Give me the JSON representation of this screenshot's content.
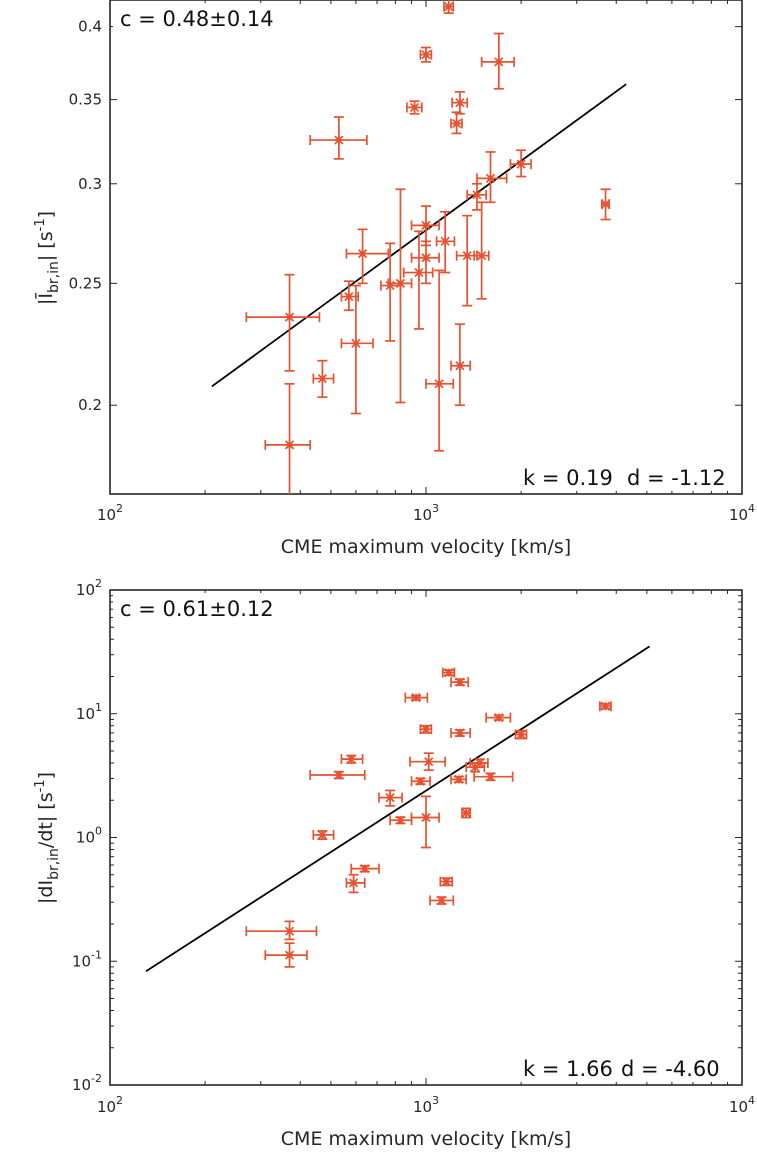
{
  "colors": {
    "data": "#e8512f",
    "fit": "#000000",
    "axis": "#262626"
  },
  "chart_data": [
    {
      "type": "scatter",
      "xscale": "log",
      "yscale": "log",
      "xlim": [
        100,
        10000
      ],
      "ylim": [
        0.17,
        0.42
      ],
      "xlabel": "CME maximum velocity [km/s]",
      "ylabel_main": "|Ī",
      "ylabel_sub": "br,in",
      "ylabel_unit": "| [s",
      "ylabel_sup": "-1",
      "ylabel_end": "]",
      "x_ticks": [
        {
          "base": "10",
          "exp": "2"
        },
        {
          "base": "10",
          "exp": "3"
        },
        {
          "base": "10",
          "exp": "4"
        }
      ],
      "y_ticks": [
        "0.2",
        "0.25",
        "0.3",
        "0.35",
        "0.4"
      ],
      "annotation_c": "c = 0.48±0.14",
      "annotation_k": "k = 0.19",
      "annotation_d": "d = -1.12",
      "fit": {
        "x": [
          210,
          4300
        ],
        "y": [
          0.207,
          0.36
        ]
      },
      "points": [
        {
          "x": 1180,
          "y": 0.415,
          "xerr": [
            1140,
            1220
          ],
          "yerr": [
            0.41,
            0.422
          ]
        },
        {
          "x": 1000,
          "y": 0.38,
          "xerr": [
            960,
            1040
          ],
          "yerr": [
            0.375,
            0.385
          ]
        },
        {
          "x": 1700,
          "y": 0.375,
          "xerr": [
            1500,
            1900
          ],
          "yerr": [
            0.357,
            0.395
          ]
        },
        {
          "x": 1280,
          "y": 0.348,
          "xerr": [
            1210,
            1350
          ],
          "yerr": [
            0.341,
            0.355
          ]
        },
        {
          "x": 920,
          "y": 0.345,
          "xerr": [
            870,
            970
          ],
          "yerr": [
            0.341,
            0.349
          ]
        },
        {
          "x": 1250,
          "y": 0.335,
          "xerr": [
            1200,
            1300
          ],
          "yerr": [
            0.329,
            0.342
          ]
        },
        {
          "x": 530,
          "y": 0.325,
          "xerr": [
            430,
            650
          ],
          "yerr": [
            0.314,
            0.339
          ]
        },
        {
          "x": 2000,
          "y": 0.311,
          "xerr": [
            1850,
            2150
          ],
          "yerr": [
            0.304,
            0.319
          ]
        },
        {
          "x": 1600,
          "y": 0.303,
          "xerr": [
            1450,
            1800
          ],
          "yerr": [
            0.29,
            0.318
          ]
        },
        {
          "x": 1450,
          "y": 0.294,
          "xerr": [
            1350,
            1550
          ],
          "yerr": [
            0.286,
            0.3
          ]
        },
        {
          "x": 3700,
          "y": 0.289,
          "xerr": [
            3600,
            3800
          ],
          "yerr": [
            0.281,
            0.297
          ]
        },
        {
          "x": 1000,
          "y": 0.278,
          "xerr": [
            900,
            1100
          ],
          "yerr": [
            0.268,
            0.288
          ]
        },
        {
          "x": 1150,
          "y": 0.27,
          "xerr": [
            1080,
            1230
          ],
          "yerr": [
            0.255,
            0.285
          ]
        },
        {
          "x": 630,
          "y": 0.264,
          "xerr": [
            560,
            760
          ],
          "yerr": [
            0.25,
            0.276
          ]
        },
        {
          "x": 1350,
          "y": 0.263,
          "xerr": [
            1250,
            1450
          ],
          "yerr": [
            0.24,
            0.283
          ]
        },
        {
          "x": 1500,
          "y": 0.263,
          "xerr": [
            1420,
            1580
          ],
          "yerr": [
            0.243,
            0.29
          ]
        },
        {
          "x": 1000,
          "y": 0.262,
          "xerr": [
            900,
            1100
          ],
          "yerr": [
            0.25,
            0.27
          ]
        },
        {
          "x": 950,
          "y": 0.255,
          "xerr": [
            850,
            1050
          ],
          "yerr": [
            0.23,
            0.275
          ]
        },
        {
          "x": 830,
          "y": 0.25,
          "xerr": [
            760,
            900
          ],
          "yerr": [
            0.201,
            0.297
          ]
        },
        {
          "x": 770,
          "y": 0.249,
          "xerr": [
            720,
            830
          ],
          "yerr": [
            0.225,
            0.269
          ]
        },
        {
          "x": 570,
          "y": 0.244,
          "xerr": [
            540,
            610
          ],
          "yerr": [
            0.238,
            0.251
          ]
        },
        {
          "x": 370,
          "y": 0.235,
          "xerr": [
            270,
            460
          ],
          "yerr": [
            0.213,
            0.254
          ]
        },
        {
          "x": 600,
          "y": 0.224,
          "xerr": [
            540,
            680
          ],
          "yerr": [
            0.197,
            0.249
          ]
        },
        {
          "x": 1280,
          "y": 0.215,
          "xerr": [
            1200,
            1380
          ],
          "yerr": [
            0.2,
            0.232
          ]
        },
        {
          "x": 470,
          "y": 0.21,
          "xerr": [
            440,
            510
          ],
          "yerr": [
            0.203,
            0.217
          ]
        },
        {
          "x": 1100,
          "y": 0.208,
          "xerr": [
            1000,
            1220
          ],
          "yerr": [
            0.184,
            0.256
          ]
        },
        {
          "x": 370,
          "y": 0.186,
          "xerr": [
            310,
            430
          ],
          "yerr": [
            0.157,
            0.208
          ]
        }
      ]
    },
    {
      "type": "scatter",
      "xscale": "log",
      "yscale": "log",
      "xlim": [
        100,
        10000
      ],
      "ylim": [
        0.01,
        100
      ],
      "xlabel": "CME maximum velocity [km/s]",
      "ylabel_main": "|dI",
      "ylabel_sub": "br,in",
      "ylabel_unit": "/dt| [s",
      "ylabel_sup": "-1",
      "ylabel_end": "]",
      "x_ticks": [
        {
          "base": "10",
          "exp": "2"
        },
        {
          "base": "10",
          "exp": "3"
        },
        {
          "base": "10",
          "exp": "4"
        }
      ],
      "y_ticks": [
        {
          "base": "10",
          "exp": "-2"
        },
        {
          "base": "10",
          "exp": "-1"
        },
        {
          "base": "10",
          "exp": "0"
        },
        {
          "base": "10",
          "exp": "1"
        },
        {
          "base": "10",
          "exp": "2"
        }
      ],
      "annotation_c": "c = 0.61±0.12",
      "annotation_k": "k = 1.66",
      "annotation_d": "d = -4.60",
      "fit": {
        "x": [
          130,
          5100
        ],
        "y": [
          0.083,
          35
        ]
      },
      "points": [
        {
          "x": 1180,
          "y": 21.5,
          "xerr": [
            1130,
            1230
          ],
          "yerr": [
            20.5,
            22.5
          ]
        },
        {
          "x": 1280,
          "y": 18.0,
          "xerr": [
            1200,
            1360
          ],
          "yerr": [
            17.0,
            19.0
          ]
        },
        {
          "x": 930,
          "y": 13.5,
          "xerr": [
            860,
            1010
          ],
          "yerr": [
            13.0,
            14.0
          ]
        },
        {
          "x": 3700,
          "y": 11.5,
          "xerr": [
            3550,
            3850
          ],
          "yerr": [
            11.0,
            12.0
          ]
        },
        {
          "x": 1700,
          "y": 9.3,
          "xerr": [
            1550,
            1850
          ],
          "yerr": [
            8.9,
            9.7
          ]
        },
        {
          "x": 1000,
          "y": 7.5,
          "xerr": [
            960,
            1040
          ],
          "yerr": [
            7.0,
            8.0
          ]
        },
        {
          "x": 1280,
          "y": 7.0,
          "xerr": [
            1200,
            1380
          ],
          "yerr": [
            6.6,
            7.4
          ]
        },
        {
          "x": 2000,
          "y": 6.8,
          "xerr": [
            1920,
            2080
          ],
          "yerr": [
            6.3,
            7.3
          ]
        },
        {
          "x": 580,
          "y": 4.3,
          "xerr": [
            540,
            630
          ],
          "yerr": [
            4.0,
            4.6
          ]
        },
        {
          "x": 1020,
          "y": 4.1,
          "xerr": [
            890,
            1150
          ],
          "yerr": [
            3.5,
            4.8
          ]
        },
        {
          "x": 1480,
          "y": 4.0,
          "xerr": [
            1380,
            1570
          ],
          "yerr": [
            3.7,
            4.3
          ]
        },
        {
          "x": 1430,
          "y": 3.7,
          "xerr": [
            1340,
            1530
          ],
          "yerr": [
            3.4,
            4.0
          ]
        },
        {
          "x": 530,
          "y": 3.2,
          "xerr": [
            430,
            640
          ],
          "yerr": [
            3.0,
            3.4
          ]
        },
        {
          "x": 1600,
          "y": 3.1,
          "xerr": [
            1420,
            1880
          ],
          "yerr": [
            2.9,
            3.3
          ]
        },
        {
          "x": 1270,
          "y": 2.95,
          "xerr": [
            1200,
            1340
          ],
          "yerr": [
            2.8,
            3.1
          ]
        },
        {
          "x": 960,
          "y": 2.85,
          "xerr": [
            900,
            1030
          ],
          "yerr": [
            2.7,
            3.0
          ]
        },
        {
          "x": 770,
          "y": 2.1,
          "xerr": [
            710,
            840
          ],
          "yerr": [
            1.8,
            2.4
          ]
        },
        {
          "x": 1340,
          "y": 1.58,
          "xerr": [
            1300,
            1380
          ],
          "yerr": [
            1.45,
            1.72
          ]
        },
        {
          "x": 830,
          "y": 1.38,
          "xerr": [
            770,
            900
          ],
          "yerr": [
            1.3,
            1.46
          ]
        },
        {
          "x": 1000,
          "y": 1.45,
          "xerr": [
            900,
            1100
          ],
          "yerr": [
            0.83,
            2.15
          ]
        },
        {
          "x": 470,
          "y": 1.05,
          "xerr": [
            440,
            510
          ],
          "yerr": [
            0.97,
            1.13
          ]
        },
        {
          "x": 640,
          "y": 0.56,
          "xerr": [
            580,
            710
          ],
          "yerr": [
            0.53,
            0.59
          ]
        },
        {
          "x": 590,
          "y": 0.43,
          "xerr": [
            560,
            640
          ],
          "yerr": [
            0.36,
            0.5
          ]
        },
        {
          "x": 1160,
          "y": 0.44,
          "xerr": [
            1110,
            1210
          ],
          "yerr": [
            0.41,
            0.47
          ]
        },
        {
          "x": 1120,
          "y": 0.31,
          "xerr": [
            1030,
            1220
          ],
          "yerr": [
            0.29,
            0.33
          ]
        },
        {
          "x": 370,
          "y": 0.175,
          "xerr": [
            270,
            450
          ],
          "yerr": [
            0.15,
            0.21
          ]
        },
        {
          "x": 370,
          "y": 0.112,
          "xerr": [
            310,
            420
          ],
          "yerr": [
            0.09,
            0.14
          ]
        }
      ]
    }
  ]
}
